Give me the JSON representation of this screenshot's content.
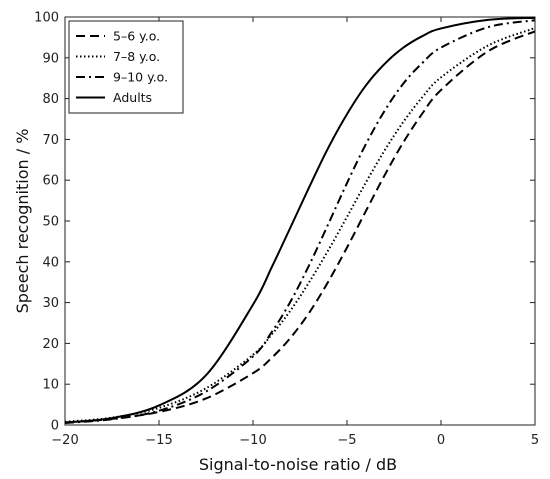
{
  "chart_data": {
    "type": "line",
    "title": "",
    "xlabel": "Signal-to-noise ratio / dB",
    "ylabel": "Speech recognition / %",
    "xlim": [
      -20,
      5
    ],
    "ylim": [
      0,
      100
    ],
    "xticks": [
      -20,
      -15,
      -10,
      -5,
      0,
      5
    ],
    "xtick_labels": [
      "−20",
      "−15",
      "−10",
      "−5",
      "0",
      "5"
    ],
    "yticks": [
      0,
      10,
      20,
      30,
      40,
      50,
      60,
      70,
      80,
      90,
      100
    ],
    "grid": false,
    "legend_position": "top-left",
    "x": [
      -20,
      -17.5,
      -15,
      -12.5,
      -10,
      -9,
      -8,
      -7,
      -6,
      -5,
      -4,
      -3,
      -2,
      -1,
      0,
      2.5,
      5
    ],
    "series": [
      {
        "name": "5–6 y.o.",
        "style": "dashed",
        "values": [
          0.6,
          1.5,
          3.2,
          6.5,
          12.7,
          16.5,
          21.4,
          27.6,
          35.1,
          43.5,
          52.4,
          61.2,
          69.3,
          76.3,
          82.1,
          91.6,
          96.5
        ]
      },
      {
        "name": "7–8 y.o.",
        "style": "dotted",
        "values": [
          0.8,
          1.8,
          4.2,
          9.0,
          17.2,
          22.2,
          28.1,
          35.1,
          42.8,
          51.0,
          59.4,
          67.3,
          74.3,
          80.3,
          85.2,
          93.0,
          97.3
        ]
      },
      {
        "name": "9–10 y.o.",
        "style": "dashdot",
        "values": [
          0.5,
          1.4,
          3.5,
          8.2,
          16.8,
          22.8,
          30.3,
          39.3,
          49.2,
          59.3,
          68.8,
          77.0,
          83.7,
          88.7,
          92.5,
          97.5,
          99.2
        ]
      },
      {
        "name": "Adults",
        "style": "solid",
        "values": [
          0.6,
          1.7,
          4.8,
          12.2,
          29.5,
          38.7,
          48.5,
          58.4,
          67.9,
          76.2,
          83.2,
          88.5,
          92.5,
          95.3,
          97.2,
          99.3,
          99.8
        ]
      }
    ]
  }
}
